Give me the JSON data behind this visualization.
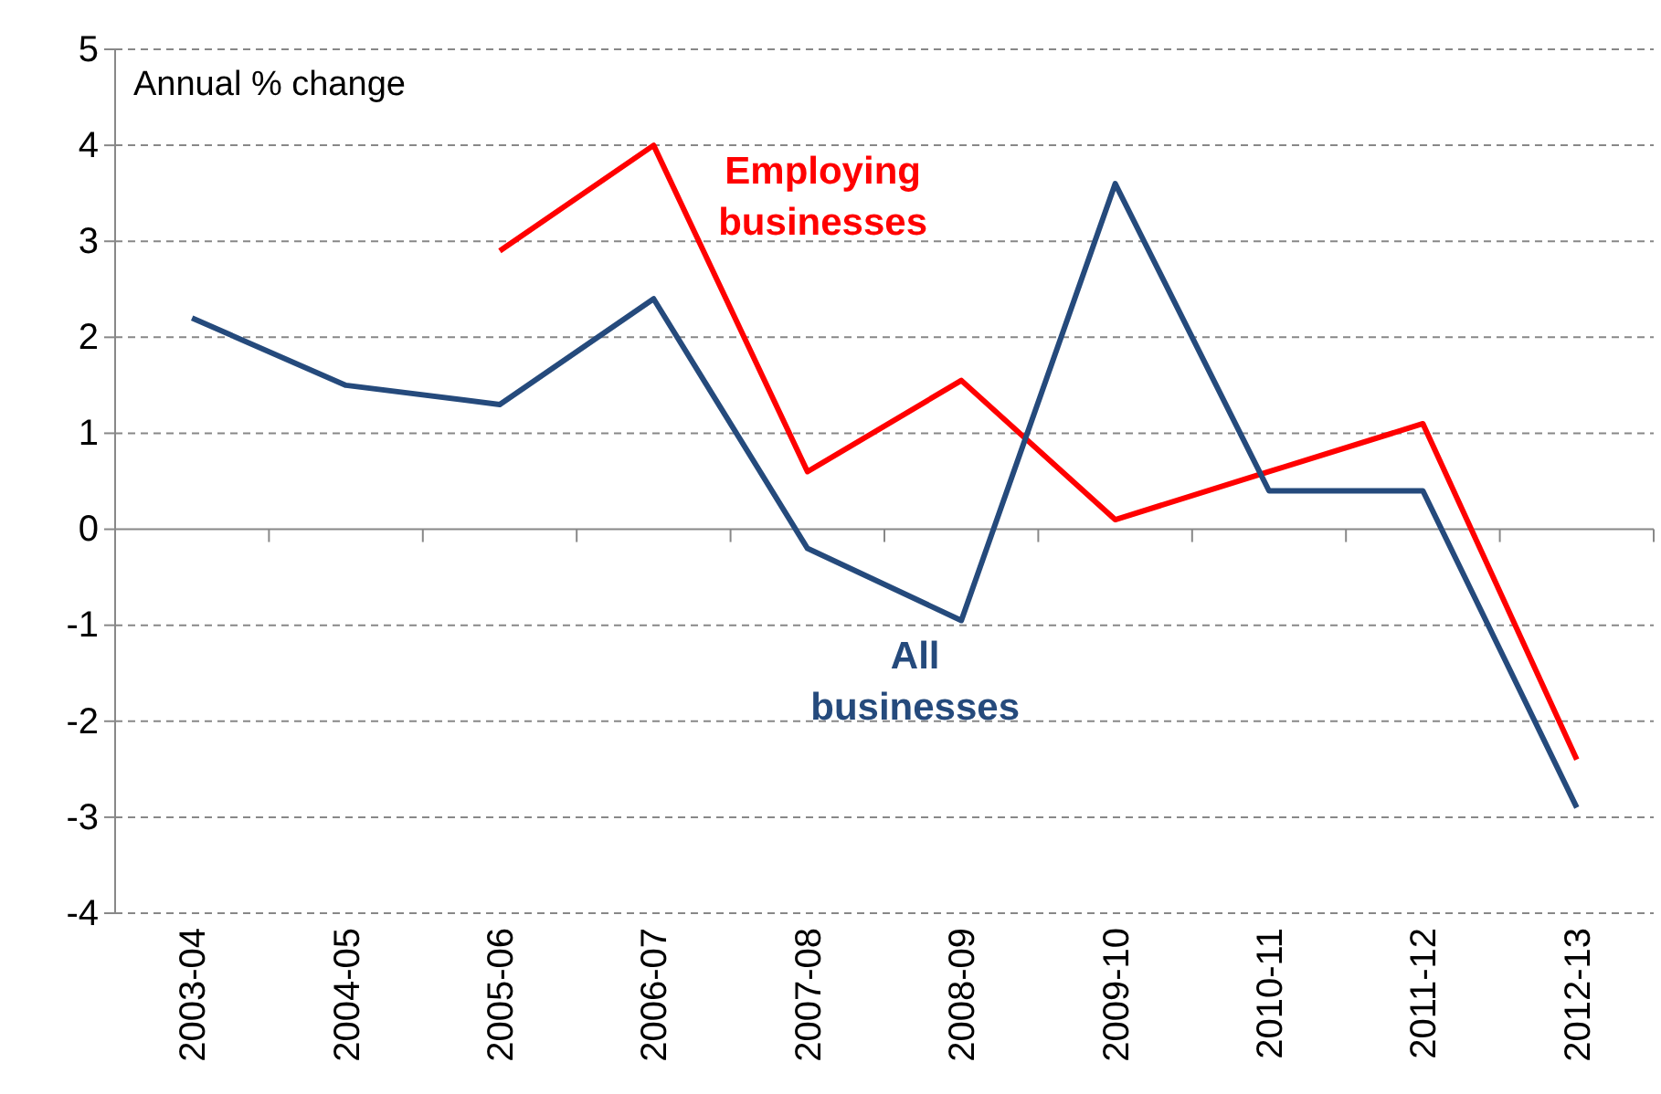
{
  "chart_data": {
    "type": "line",
    "ylabel": "Annual % change",
    "categories": [
      "2003-04",
      "2004-05",
      "2005-06",
      "2006-07",
      "2007-08",
      "2008-09",
      "2009-10",
      "2010-11",
      "2011-12",
      "2012-13"
    ],
    "series": [
      {
        "name": "Employing businesses",
        "color": "#ff0000",
        "values": [
          null,
          null,
          2.9,
          4.0,
          0.6,
          1.55,
          0.1,
          0.6,
          1.1,
          -2.4
        ]
      },
      {
        "name": "All businesses",
        "color": "#254a7c",
        "values": [
          2.2,
          1.5,
          1.3,
          2.4,
          -0.2,
          -0.95,
          3.6,
          0.4,
          0.4,
          -2.9
        ]
      }
    ],
    "ylim": [
      -4,
      5
    ],
    "yticks": [
      -4,
      -3,
      -2,
      -1,
      0,
      1,
      2,
      3,
      4,
      5
    ],
    "grid": "y",
    "legend": false,
    "marker": "none",
    "line_style": "solid"
  }
}
